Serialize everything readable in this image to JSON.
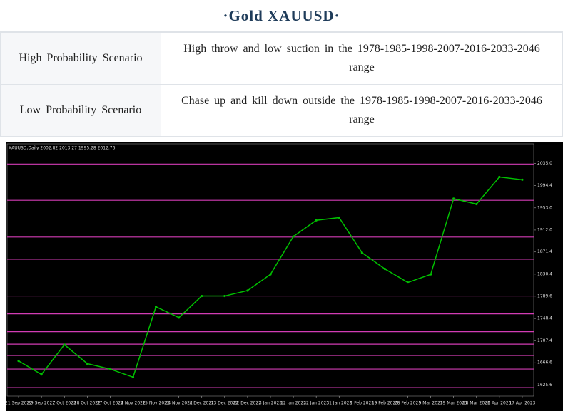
{
  "header": {
    "title": "·Gold  XAUUSD·"
  },
  "table": {
    "rows": [
      [
        "High Probability Scenario",
        "High throw and low suction in the 1978-1985-1998-2007-2016-2033-2046 range"
      ],
      [
        "Low Probability Scenario",
        "Chase up and kill down outside the 1978-1985-1998-2007-2016-2033-2046 range"
      ]
    ]
  },
  "chart_data": {
    "type": "line",
    "title": "XAUUSD,Daily  2002.82 2013.27 1995.28 2012.76",
    "categories": [
      "21 Sep 2022",
      "29 Sep 2022",
      "7 Oct 2022",
      "18 Oct 2022",
      "27 Oct 2022",
      "4 Nov 2022",
      "15 Nov 2022",
      "24 Nov 2022",
      "4 Dec 2022",
      "13 Dec 2022",
      "22 Dec 2022",
      "3 Jan 2023",
      "12 Jan 2023",
      "22 Jan 2023",
      "31 Jan 2023",
      "9 Feb 2023",
      "19 Feb 2023",
      "28 Feb 2023",
      "9 Mar 2023",
      "19 Mar 2023",
      "28 Mar 2023",
      "6 Apr 2023",
      "17 Apr 2023"
    ],
    "values": [
      1670,
      1645,
      1700,
      1665,
      1655,
      1640,
      1770,
      1750,
      1790,
      1790,
      1800,
      1830,
      1900,
      1930,
      1935,
      1870,
      1840,
      1815,
      1830,
      1970,
      1960,
      2010,
      2005
    ],
    "color": "#00c000",
    "levels": [
      2034,
      1967,
      1899,
      1858,
      1790,
      1757,
      1724,
      1701,
      1680,
      1655,
      1621
    ],
    "level_color": "#d23cb4",
    "ylim": [
      1605,
      2066
    ],
    "yticks": [
      1625.6,
      1666.6,
      1707.4,
      1748.4,
      1789.6,
      1830.4,
      1871.4,
      {
        "value": 1912,
        "label": "1912.0"
      },
      {
        "value": 1953,
        "label": "1953.0"
      },
      1994.4,
      {
        "value": 2035,
        "label": "2035.0"
      }
    ]
  }
}
